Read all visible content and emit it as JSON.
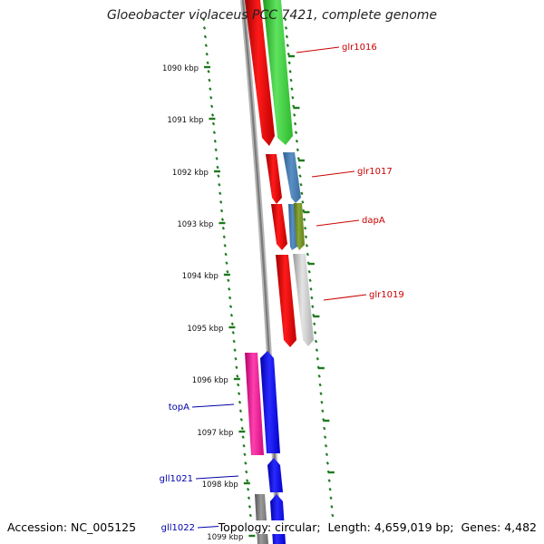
{
  "title": "Gloeobacter violaceus PCC 7421, complete genome",
  "axis_ticks": [
    "1090 kbp",
    "1091 kbp",
    "1092 kbp",
    "1093 kbp",
    "1094 kbp",
    "1095 kbp",
    "1096 kbp",
    "1097 kbp",
    "1098 kbp",
    "1099 kbp"
  ],
  "forward_labels": [
    "glr1016",
    "glr1017",
    "dapA",
    "glr1019"
  ],
  "reverse_labels": [
    "topA",
    "gll1021",
    "gll1022"
  ],
  "footer": {
    "accession": "Accession: NC_005125",
    "topology": "Topology: circular;",
    "length": "Length: 4,659,019 bp;",
    "genes": "Genes: 4,482"
  },
  "colors": {
    "forward_label": "#cc0000",
    "reverse_label": "#0000aa",
    "tick": "#1f7a1f",
    "backbone": "#8a8a8a"
  }
}
